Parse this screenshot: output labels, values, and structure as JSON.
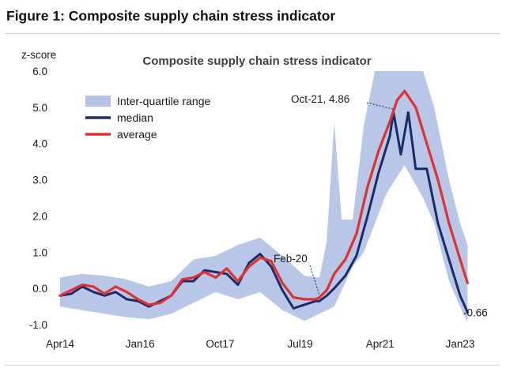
{
  "figure_title": "Figure 1: Composite supply chain stress indicator",
  "chart_data": {
    "type": "line",
    "title": "Composite supply chain stress indicator",
    "ylabel": "z-score",
    "xlabel": "",
    "ylim": [
      -1.0,
      6.0
    ],
    "y_ticks": [
      "6.0",
      "5.0",
      "4.0",
      "3.0",
      "2.0",
      "1.0",
      "0.0",
      "-1.0"
    ],
    "y_tick_values": [
      6,
      5,
      4,
      3,
      2,
      1,
      0,
      -1
    ],
    "x_tick_labels": [
      "Apr14",
      "Jan16",
      "Oct17",
      "Jul19",
      "Apr21",
      "Jan23"
    ],
    "x_range": [
      "2014-04",
      "2023-04"
    ],
    "grid": false,
    "legend_position": "top-left",
    "legend": [
      {
        "label": "Inter-quartile range",
        "color": "#b4c3e6",
        "kind": "band"
      },
      {
        "label": "median",
        "color": "#1b2a6b",
        "kind": "line"
      },
      {
        "label": "average",
        "color": "#e03030",
        "kind": "line"
      }
    ],
    "series": [
      {
        "name": "average",
        "color": "#e03030",
        "points": [
          [
            "2014-04",
            -0.2
          ],
          [
            "2014-07",
            -0.05
          ],
          [
            "2014-10",
            0.1
          ],
          [
            "2015-01",
            0.05
          ],
          [
            "2015-04",
            -0.15
          ],
          [
            "2015-07",
            0.05
          ],
          [
            "2015-10",
            -0.1
          ],
          [
            "2016-01",
            -0.3
          ],
          [
            "2016-04",
            -0.45
          ],
          [
            "2016-07",
            -0.4
          ],
          [
            "2016-10",
            -0.2
          ],
          [
            "2017-01",
            0.25
          ],
          [
            "2017-04",
            0.3
          ],
          [
            "2017-07",
            0.45
          ],
          [
            "2017-10",
            0.3
          ],
          [
            "2018-01",
            0.55
          ],
          [
            "2018-04",
            0.2
          ],
          [
            "2018-07",
            0.6
          ],
          [
            "2018-10",
            0.85
          ],
          [
            "2019-01",
            0.75
          ],
          [
            "2019-04",
            0.15
          ],
          [
            "2019-07",
            -0.25
          ],
          [
            "2019-10",
            -0.3
          ],
          [
            "2020-01",
            -0.3
          ],
          [
            "2020-02",
            -0.25
          ],
          [
            "2020-04",
            -0.05
          ],
          [
            "2020-06",
            0.4
          ],
          [
            "2020-09",
            0.8
          ],
          [
            "2020-12",
            1.5
          ],
          [
            "2021-03",
            2.8
          ],
          [
            "2021-06",
            3.8
          ],
          [
            "2021-09",
            4.6
          ],
          [
            "2021-11",
            5.2
          ],
          [
            "2022-01",
            5.45
          ],
          [
            "2022-04",
            5.0
          ],
          [
            "2022-07",
            4.0
          ],
          [
            "2022-10",
            3.0
          ],
          [
            "2023-01",
            1.8
          ],
          [
            "2023-04",
            0.8
          ],
          [
            "2023-06",
            0.15
          ]
        ]
      },
      {
        "name": "median",
        "color": "#1b2a6b",
        "points": [
          [
            "2014-04",
            -0.2
          ],
          [
            "2014-07",
            -0.15
          ],
          [
            "2014-10",
            0.05
          ],
          [
            "2015-01",
            -0.1
          ],
          [
            "2015-04",
            -0.2
          ],
          [
            "2015-07",
            -0.1
          ],
          [
            "2015-10",
            -0.3
          ],
          [
            "2016-01",
            -0.35
          ],
          [
            "2016-04",
            -0.5
          ],
          [
            "2016-07",
            -0.35
          ],
          [
            "2016-10",
            -0.2
          ],
          [
            "2017-01",
            0.2
          ],
          [
            "2017-04",
            0.2
          ],
          [
            "2017-07",
            0.5
          ],
          [
            "2017-10",
            0.45
          ],
          [
            "2018-01",
            0.4
          ],
          [
            "2018-04",
            0.1
          ],
          [
            "2018-07",
            0.7
          ],
          [
            "2018-10",
            0.95
          ],
          [
            "2019-01",
            0.6
          ],
          [
            "2019-04",
            -0.05
          ],
          [
            "2019-07",
            -0.55
          ],
          [
            "2019-10",
            -0.45
          ],
          [
            "2020-01",
            -0.35
          ],
          [
            "2020-02",
            -0.35
          ],
          [
            "2020-04",
            -0.2
          ],
          [
            "2020-06",
            0.0
          ],
          [
            "2020-09",
            0.35
          ],
          [
            "2020-12",
            0.9
          ],
          [
            "2021-03",
            2.0
          ],
          [
            "2021-06",
            3.2
          ],
          [
            "2021-09",
            4.2
          ],
          [
            "2021-10",
            4.86
          ],
          [
            "2021-12",
            3.7
          ],
          [
            "2022-02",
            4.86
          ],
          [
            "2022-04",
            3.3
          ],
          [
            "2022-07",
            3.3
          ],
          [
            "2022-10",
            1.8
          ],
          [
            "2023-01",
            0.8
          ],
          [
            "2023-04",
            -0.2
          ],
          [
            "2023-06",
            -0.66
          ]
        ]
      }
    ],
    "iqr_band": {
      "name": "Inter-quartile range",
      "upper": [
        [
          "2014-04",
          0.3
        ],
        [
          "2014-10",
          0.4
        ],
        [
          "2015-04",
          0.35
        ],
        [
          "2015-10",
          0.25
        ],
        [
          "2016-04",
          0.05
        ],
        [
          "2016-10",
          0.2
        ],
        [
          "2017-04",
          0.8
        ],
        [
          "2017-10",
          0.9
        ],
        [
          "2018-04",
          1.2
        ],
        [
          "2018-10",
          1.4
        ],
        [
          "2019-04",
          0.9
        ],
        [
          "2019-10",
          0.35
        ],
        [
          "2020-02",
          0.3
        ],
        [
          "2020-04",
          1.3
        ],
        [
          "2020-06",
          4.6
        ],
        [
          "2020-08",
          1.9
        ],
        [
          "2020-11",
          1.9
        ],
        [
          "2021-02",
          4.5
        ],
        [
          "2021-05",
          6.0
        ],
        [
          "2022-06",
          6.0
        ],
        [
          "2022-09",
          5.0
        ],
        [
          "2023-01",
          3.0
        ],
        [
          "2023-04",
          1.8
        ],
        [
          "2023-06",
          1.2
        ]
      ],
      "lower": [
        [
          "2023-06",
          -0.95
        ],
        [
          "2023-04",
          -0.5
        ],
        [
          "2023-01",
          0.2
        ],
        [
          "2022-09",
          1.8
        ],
        [
          "2022-06",
          2.5
        ],
        [
          "2022-01",
          3.4
        ],
        [
          "2021-08",
          2.6
        ],
        [
          "2021-05",
          1.8
        ],
        [
          "2021-02",
          1.0
        ],
        [
          "2020-11",
          0.6
        ],
        [
          "2020-06",
          -0.5
        ],
        [
          "2020-02",
          -0.7
        ],
        [
          "2019-10",
          -0.9
        ],
        [
          "2019-04",
          -0.6
        ],
        [
          "2018-10",
          -0.1
        ],
        [
          "2018-04",
          -0.3
        ],
        [
          "2017-10",
          -0.1
        ],
        [
          "2017-04",
          -0.4
        ],
        [
          "2016-10",
          -0.7
        ],
        [
          "2016-04",
          -0.85
        ],
        [
          "2015-10",
          -0.8
        ],
        [
          "2015-04",
          -0.7
        ],
        [
          "2014-10",
          -0.6
        ],
        [
          "2014-04",
          -0.5
        ]
      ]
    },
    "annotations": [
      {
        "label": "Oct-21, 4.86",
        "x": "2021-10",
        "y": 4.86
      },
      {
        "label": "Feb-20",
        "x": "2020-02",
        "y": -0.25
      },
      {
        "label": "-0.66",
        "x": "2023-06",
        "y": -0.66
      }
    ]
  }
}
